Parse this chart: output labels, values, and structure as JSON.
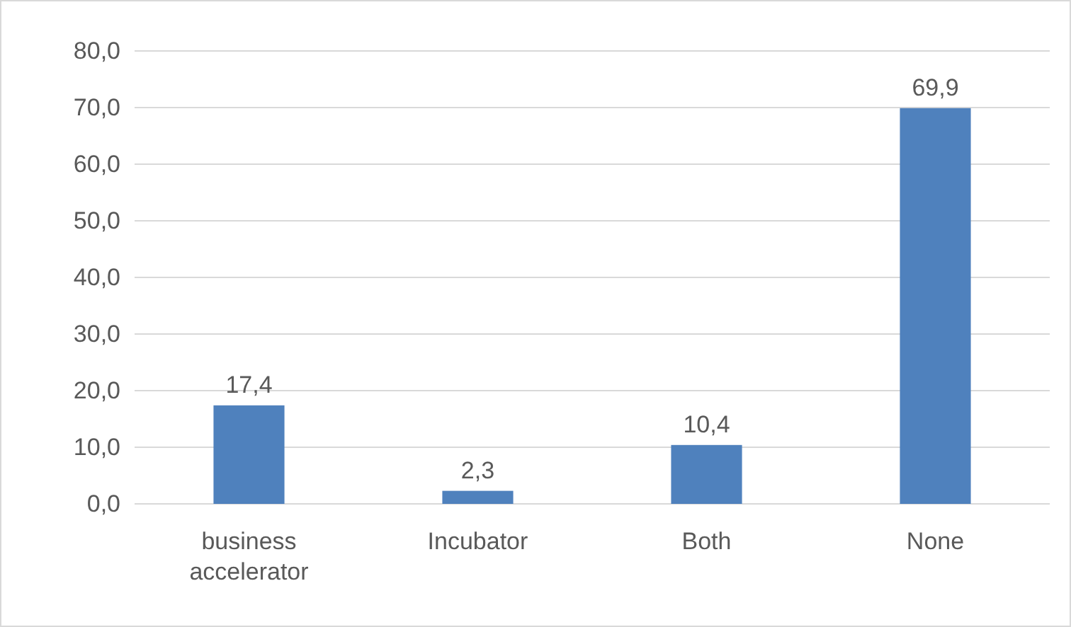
{
  "chart_data": {
    "type": "bar",
    "categories": [
      "business accelerator",
      "Incubator",
      "Both",
      "None"
    ],
    "values": [
      17.4,
      2.3,
      10.4,
      69.9
    ],
    "value_labels": [
      "17,4",
      "2,3",
      "10,4",
      "69,9"
    ],
    "color": "#4f81bd",
    "ylim": [
      0,
      80
    ],
    "yticks": [
      {
        "value": 0,
        "label": "0,0"
      },
      {
        "value": 10,
        "label": "10,0"
      },
      {
        "value": 20,
        "label": "20,0"
      },
      {
        "value": 30,
        "label": "30,0"
      },
      {
        "value": 40,
        "label": "40,0"
      },
      {
        "value": 50,
        "label": "50,0"
      },
      {
        "value": 60,
        "label": "60,0"
      },
      {
        "value": 70,
        "label": "70,0"
      },
      {
        "value": 80,
        "label": "80,0"
      }
    ],
    "grid": "y"
  }
}
